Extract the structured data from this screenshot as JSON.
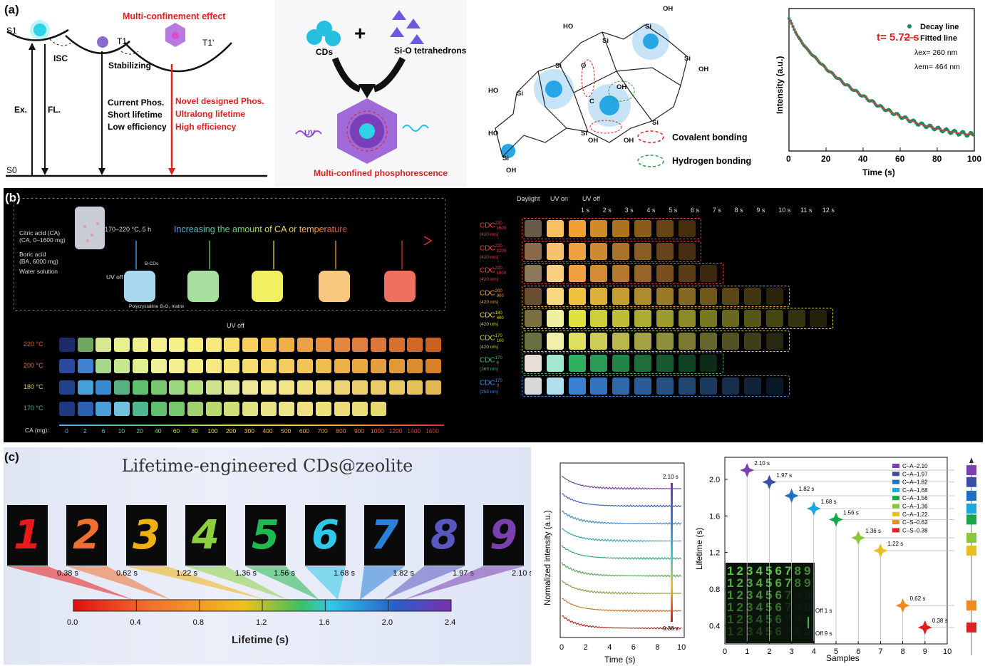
{
  "panel_labels": {
    "a": "(a)",
    "b": "(b)",
    "c": "(c)"
  },
  "a1": {
    "title": "Multi-confinement effect",
    "s1": "S1",
    "t1": "T1",
    "t1p": "T1'",
    "s0": "S0",
    "isc": "ISC",
    "stabilizing": "Stabilizing",
    "ex": "Ex.",
    "fl": "FL.",
    "current": [
      "Current Phos.",
      "Short lifetime",
      "Low efficiency"
    ],
    "novel": [
      "Novel designed Phos.",
      "Ultralong lifetime",
      "High efficiency"
    ]
  },
  "a2": {
    "cds": "CDs",
    "plus": "+",
    "sio": "Si-O tetrahedrons",
    "uv": "UV",
    "caption": "Multi-confined phosphorescence"
  },
  "a3": {
    "covalent": "Covalent bonding",
    "hydrogen": "Hydrogen bonding",
    "si": "Si",
    "oh": "OH",
    "ho": "HO",
    "o": "O",
    "c": "C"
  },
  "a4": {
    "tau": "t= 5.72 s",
    "legend": [
      "Decay line",
      "Fitted line"
    ],
    "lex": "λex= 260 nm",
    "lem": "λem= 464 nm",
    "xlabel": "Time (s)",
    "ylabel": "Intensity (a.u.)",
    "xticks": [
      "0",
      "20",
      "40",
      "60",
      "80",
      "100"
    ]
  },
  "b1": {
    "reagents": [
      "Citric acid (CA)",
      "(CA, 0–1600 mg)",
      "Boric acid",
      "(BA, 6000 mg)",
      "Water solution"
    ],
    "condition": "170–220 °C, 5 h",
    "arrow_text": "Increasing the amount of CA or temperature",
    "uv_off": "UV off",
    "bcds": "B-CDs",
    "matrix": "Polycrystalline B₂O₃ matrix"
  },
  "b2": {
    "title": "UV off",
    "temps": [
      "220 °C",
      "200 °C",
      "180 °C",
      "170 °C"
    ],
    "ca_label": "CA (mg):",
    "ca_values": [
      "0",
      "2",
      "6",
      "10",
      "20",
      "40",
      "60",
      "80",
      "100",
      "200",
      "300",
      "400",
      "500",
      "600",
      "700",
      "800",
      "900",
      "1000",
      "1200",
      "1400",
      "1600"
    ]
  },
  "b3": {
    "headers": [
      "Daylight",
      "UV on",
      "UV off"
    ],
    "times": [
      "1 s",
      "2 s",
      "3 s",
      "4 s",
      "5 s",
      "6 s",
      "7 s",
      "8 s",
      "9 s",
      "10 s",
      "11 s",
      "12 s"
    ],
    "rows": [
      {
        "name": "CDC",
        "sup": "220",
        "sub": "1600",
        "wl": "(420 nm)",
        "color": "#e0453b"
      },
      {
        "name": "CDC",
        "sup": "220",
        "sub": "1200",
        "wl": "(420 nm)",
        "color": "#e0453b"
      },
      {
        "name": "CDC",
        "sup": "220",
        "sub": "1000",
        "wl": "(420 nm)",
        "color": "#e0453b"
      },
      {
        "name": "CDC",
        "sup": "200",
        "sub": "900",
        "wl": "(420 nm)",
        "color": "#f0a030"
      },
      {
        "name": "CDC",
        "sup": "180",
        "sub": "400",
        "wl": "(420 nm)",
        "color": "#e8d840"
      },
      {
        "name": "CDC",
        "sup": "170",
        "sub": "100",
        "wl": "(420 nm)",
        "color": "#c8d040"
      },
      {
        "name": "CDC",
        "sup": "170",
        "sub": "6",
        "wl": "(365 nm)",
        "color": "#3cba60"
      },
      {
        "name": "CDC",
        "sup": "170",
        "sub": "0",
        "wl": "(254 nm)",
        "color": "#3a8ee6"
      }
    ]
  },
  "c1": {
    "title": "Lifetime-engineered CDs@zeolite",
    "digits": [
      "1",
      "2",
      "3",
      "4",
      "5",
      "6",
      "7",
      "8",
      "9"
    ],
    "lifetimes": [
      "0.38 s",
      "0.62 s",
      "1.22 s",
      "1.36 s",
      "1.56 s",
      "1.68 s",
      "1.82 s",
      "1.97 s",
      "2.10 s"
    ],
    "scale_ticks": [
      "0.0",
      "0.4",
      "0.8",
      "1.2",
      "1.6",
      "2.0",
      "2.4"
    ],
    "scale_label": "Lifetime (s)"
  },
  "c2": {
    "xlabel": "Time (s)",
    "ylabel": "Normalized intensity (a.u.)",
    "xticks": [
      "0",
      "2",
      "4",
      "6",
      "8",
      "10"
    ],
    "top": "2.10 s",
    "bottom": "0.38 s"
  },
  "c3": {
    "xlabel": "Samples",
    "ylabel": "Lifetime (s)",
    "xticks": [
      "0",
      "1",
      "2",
      "3",
      "4",
      "5",
      "6",
      "7",
      "8",
      "9",
      "10"
    ],
    "yticks": [
      "0.4",
      "0.8",
      "1.2",
      "1.6",
      "2.0"
    ],
    "legend": [
      "C–A–2.10",
      "C–A–1.97",
      "C–A–1.82",
      "C–A–1.68",
      "C–A–1.56",
      "C–A–1.36",
      "C–A–1.22",
      "C–S–0.62",
      "C–S–0.38"
    ],
    "off1": "Off 1 s",
    "off9": "Off 9 s"
  },
  "chart_data": [
    {
      "type": "scatter",
      "xlabel": "Time (s)",
      "ylabel": "Intensity (a.u.)",
      "xlim": [
        0,
        100
      ],
      "series": [
        {
          "name": "Decay line",
          "x": [
            0,
            5,
            10,
            20,
            30,
            40,
            50,
            60,
            70,
            80,
            90,
            100
          ],
          "y": [
            1.0,
            0.85,
            0.75,
            0.6,
            0.48,
            0.38,
            0.29,
            0.22,
            0.16,
            0.12,
            0.09,
            0.07
          ]
        },
        {
          "name": "Fitted line",
          "x": [
            0,
            5,
            10,
            20,
            30,
            40,
            50,
            60,
            70,
            80,
            90,
            100
          ],
          "y": [
            1.0,
            0.85,
            0.75,
            0.6,
            0.48,
            0.38,
            0.29,
            0.22,
            0.16,
            0.12,
            0.09,
            0.07
          ]
        }
      ]
    },
    {
      "type": "scatter",
      "xlabel": "Samples",
      "ylabel": "Lifetime (s)",
      "xlim": [
        0,
        10
      ],
      "ylim": [
        0.2,
        2.2
      ],
      "points": [
        {
          "x": 1,
          "y": 2.1,
          "label": "2.10 s",
          "color": "#7b3fb0"
        },
        {
          "x": 2,
          "y": 1.97,
          "label": "1.97 s",
          "color": "#3a4ea8"
        },
        {
          "x": 3,
          "y": 1.82,
          "label": "1.82 s",
          "color": "#1f6fc4"
        },
        {
          "x": 4,
          "y": 1.68,
          "label": "1.68 s",
          "color": "#1ea6e0"
        },
        {
          "x": 5,
          "y": 1.56,
          "label": "1.56 s",
          "color": "#18a84a"
        },
        {
          "x": 6,
          "y": 1.36,
          "label": "1.36 s",
          "color": "#8cc63f"
        },
        {
          "x": 7,
          "y": 1.22,
          "label": "1.22 s",
          "color": "#e8c020"
        },
        {
          "x": 8,
          "y": 0.62,
          "label": "0.62 s",
          "color": "#f08a20"
        },
        {
          "x": 9,
          "y": 0.38,
          "label": "0.38 s",
          "color": "#e02020"
        }
      ]
    }
  ]
}
